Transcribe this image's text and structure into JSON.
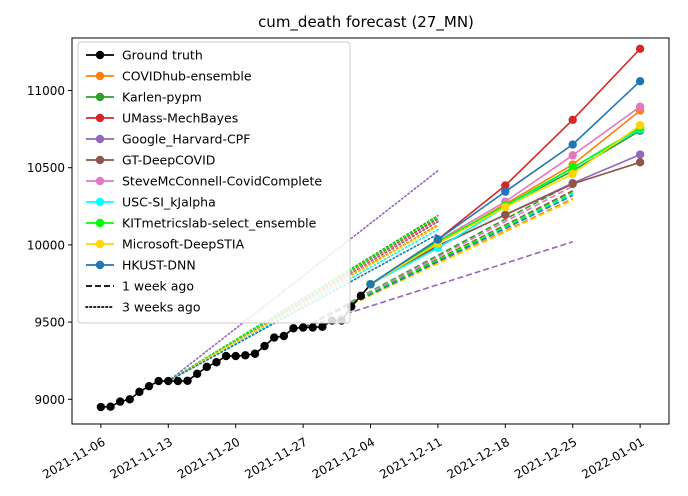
{
  "chart_data": {
    "type": "line",
    "title": "cum_death forecast (27_MN)",
    "xlabel": "",
    "ylabel": "",
    "x_ticks": [
      "2021-11-06",
      "2021-11-13",
      "2021-11-20",
      "2021-11-27",
      "2021-12-04",
      "2021-12-11",
      "2021-12-18",
      "2021-12-25",
      "2022-01-01"
    ],
    "y_ticks": [
      9000,
      9500,
      10000,
      10500,
      11000
    ],
    "xlim": [
      "2021-11-03",
      "2022-01-04"
    ],
    "ylim": [
      8840,
      11340
    ],
    "grid": false,
    "legend_position": "top-left",
    "ground_truth": {
      "name": "Ground truth",
      "color": "#000000",
      "points": [
        [
          "2021-11-06",
          8950
        ],
        [
          "2021-11-07",
          8952
        ],
        [
          "2021-11-08",
          8985
        ],
        [
          "2021-11-09",
          9000
        ],
        [
          "2021-11-10",
          9048
        ],
        [
          "2021-11-11",
          9085
        ],
        [
          "2021-11-12",
          9118
        ],
        [
          "2021-11-13",
          9118
        ],
        [
          "2021-11-14",
          9118
        ],
        [
          "2021-11-15",
          9120
        ],
        [
          "2021-11-16",
          9165
        ],
        [
          "2021-11-17",
          9210
        ],
        [
          "2021-11-18",
          9240
        ],
        [
          "2021-11-19",
          9280
        ],
        [
          "2021-11-20",
          9280
        ],
        [
          "2021-11-21",
          9285
        ],
        [
          "2021-11-22",
          9295
        ],
        [
          "2021-11-23",
          9345
        ],
        [
          "2021-11-24",
          9400
        ],
        [
          "2021-11-25",
          9410
        ],
        [
          "2021-11-26",
          9460
        ],
        [
          "2021-11-27",
          9465
        ],
        [
          "2021-11-28",
          9465
        ],
        [
          "2021-11-29",
          9470
        ],
        [
          "2021-11-30",
          9510
        ],
        [
          "2021-12-01",
          9510
        ],
        [
          "2021-12-02",
          9600
        ],
        [
          "2021-12-03",
          9670
        ],
        [
          "2021-12-04",
          9745
        ]
      ]
    },
    "forecast_styles": [
      {
        "name": "1 week ago",
        "style": "dashed"
      },
      {
        "name": "3 weeks ago",
        "style": "dotted"
      }
    ],
    "series": [
      {
        "name": "COVIDhub-ensemble",
        "color": "#ff7f0e",
        "current": [
          [
            "2021-12-04",
            9745
          ],
          [
            "2021-12-11",
            10010
          ],
          [
            "2021-12-18",
            10265
          ],
          [
            "2021-12-25",
            10520
          ],
          [
            "2022-01-01",
            10870
          ]
        ],
        "week1": [
          [
            "2021-11-27",
            9465
          ],
          [
            "2021-12-25",
            10300
          ]
        ],
        "week3": [
          [
            "2021-11-13",
            9118
          ],
          [
            "2021-12-11",
            10130
          ]
        ]
      },
      {
        "name": "Karlen-pypm",
        "color": "#2ca02c",
        "current": [
          [
            "2021-12-04",
            9745
          ],
          [
            "2021-12-11",
            10020
          ],
          [
            "2021-12-18",
            10250
          ],
          [
            "2021-12-25",
            10480
          ],
          [
            "2022-01-01",
            10740
          ]
        ],
        "week1": [
          [
            "2021-11-27",
            9465
          ],
          [
            "2021-12-25",
            10400
          ]
        ],
        "week3": [
          [
            "2021-11-13",
            9118
          ],
          [
            "2021-12-11",
            10190
          ]
        ]
      },
      {
        "name": "UMass-MechBayes",
        "color": "#d62728",
        "current": [
          [
            "2021-12-04",
            9745
          ],
          [
            "2021-12-11",
            10035
          ],
          [
            "2021-12-18",
            10385
          ],
          [
            "2021-12-25",
            10810
          ],
          [
            "2022-01-01",
            11270
          ]
        ],
        "week1": [
          [
            "2021-11-27",
            9465
          ],
          [
            "2021-12-25",
            10350
          ]
        ],
        "week3": [
          [
            "2021-11-13",
            9118
          ],
          [
            "2021-12-11",
            10170
          ]
        ]
      },
      {
        "name": "Google_Harvard-CPF",
        "color": "#9467bd",
        "current": [
          [
            "2021-12-04",
            9745
          ],
          [
            "2021-12-11",
            9990
          ],
          [
            "2021-12-18",
            10195
          ],
          [
            "2021-12-25",
            10400
          ],
          [
            "2022-01-01",
            10585
          ]
        ],
        "week1": [
          [
            "2021-11-27",
            9465
          ],
          [
            "2021-12-25",
            10020
          ]
        ],
        "week3": [
          [
            "2021-11-13",
            9118
          ],
          [
            "2021-12-11",
            10480
          ]
        ]
      },
      {
        "name": "GT-DeepCOVID",
        "color": "#8c564b",
        "current": [
          [
            "2021-12-04",
            9745
          ],
          [
            "2021-12-11",
            9995
          ],
          [
            "2021-12-18",
            10195
          ],
          [
            "2021-12-25",
            10395
          ],
          [
            "2022-01-01",
            10535
          ]
        ],
        "week1": [
          [
            "2021-11-27",
            9465
          ],
          [
            "2021-12-25",
            10350
          ]
        ],
        "week3": [
          [
            "2021-11-13",
            9118
          ],
          [
            "2021-12-11",
            10150
          ]
        ]
      },
      {
        "name": "SteveMcConnell-CovidComplete",
        "color": "#e377c2",
        "current": [
          [
            "2021-12-04",
            9745
          ],
          [
            "2021-12-11",
            10025
          ],
          [
            "2021-12-18",
            10280
          ],
          [
            "2021-12-25",
            10580
          ],
          [
            "2022-01-01",
            10895
          ]
        ],
        "week1": [
          [
            "2021-11-27",
            9465
          ],
          [
            "2021-12-25",
            10380
          ]
        ],
        "week3": [
          [
            "2021-11-13",
            9118
          ],
          [
            "2021-12-11",
            10160
          ]
        ]
      },
      {
        "name": "USC-SI_kJalpha",
        "color": "#00ffff",
        "current": [
          [
            "2021-12-04",
            9745
          ],
          [
            "2021-12-11",
            9980
          ],
          [
            "2021-12-18",
            10245
          ],
          [
            "2021-12-25",
            10500
          ],
          [
            "2022-01-01",
            10750
          ]
        ],
        "week1": [
          [
            "2021-11-27",
            9465
          ],
          [
            "2021-12-25",
            10330
          ]
        ],
        "week3": [
          [
            "2021-11-13",
            9118
          ],
          [
            "2021-12-11",
            10100
          ]
        ]
      },
      {
        "name": "KITmetricslab-select_ensemble",
        "color": "#00ff00",
        "current": [
          [
            "2021-12-04",
            9745
          ],
          [
            "2021-12-11",
            10020
          ],
          [
            "2021-12-18",
            10255
          ],
          [
            "2021-12-25",
            10500
          ],
          [
            "2022-01-01",
            10760
          ]
        ],
        "week1": [
          [
            "2021-11-27",
            9465
          ],
          [
            "2021-12-25",
            10340
          ]
        ],
        "week3": [
          [
            "2021-11-13",
            9118
          ],
          [
            "2021-12-11",
            10180
          ]
        ]
      },
      {
        "name": "Microsoft-DeepSTIA",
        "color": "#ffd700",
        "current": [
          [
            "2021-12-04",
            9745
          ],
          [
            "2021-12-11",
            10010
          ],
          [
            "2021-12-18",
            10245
          ],
          [
            "2021-12-25",
            10460
          ],
          [
            "2022-01-01",
            10775
          ]
        ],
        "week1": [
          [
            "2021-11-27",
            9465
          ],
          [
            "2021-12-25",
            10290
          ]
        ],
        "week3": [
          [
            "2021-11-13",
            9118
          ],
          [
            "2021-12-11",
            10120
          ]
        ]
      },
      {
        "name": "HKUST-DNN",
        "color": "#1f77b4",
        "current": [
          [
            "2021-12-04",
            9745
          ],
          [
            "2021-12-11",
            10035
          ],
          [
            "2021-12-18",
            10345
          ],
          [
            "2021-12-25",
            10650
          ],
          [
            "2022-01-01",
            11060
          ]
        ],
        "week1": [
          [
            "2021-11-27",
            9465
          ],
          [
            "2021-12-25",
            10320
          ]
        ],
        "week3": [
          [
            "2021-11-13",
            9118
          ],
          [
            "2021-12-11",
            10070
          ]
        ]
      }
    ]
  }
}
